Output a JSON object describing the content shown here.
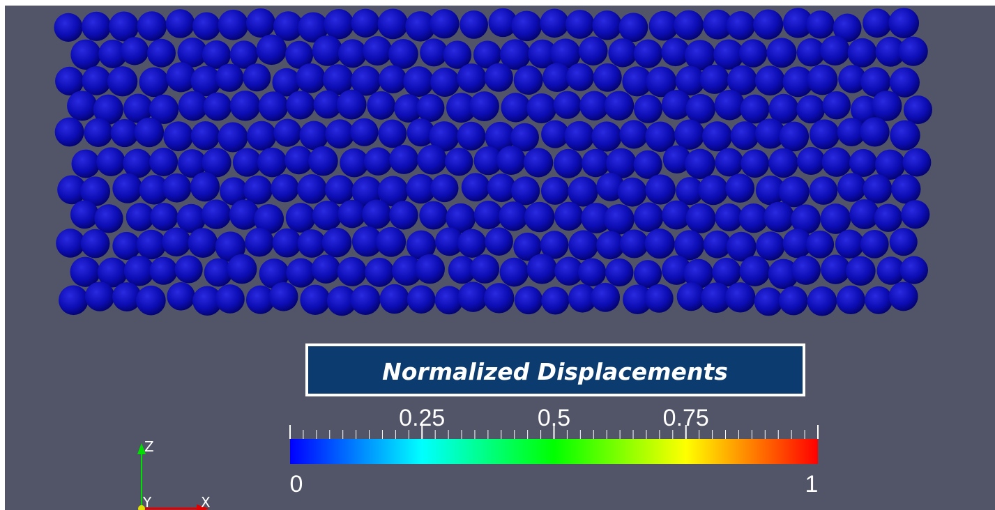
{
  "colorbar": {
    "title": "Normalized Displacements",
    "range": [
      0,
      1
    ],
    "ticks": [
      0.25,
      0.5,
      0.75
    ],
    "colormap": [
      "#0000ff",
      "#00ffff",
      "#00ff00",
      "#ffff00",
      "#ff0000"
    ]
  },
  "axes": {
    "x": "X",
    "y": "Y",
    "z": "Z"
  }
}
